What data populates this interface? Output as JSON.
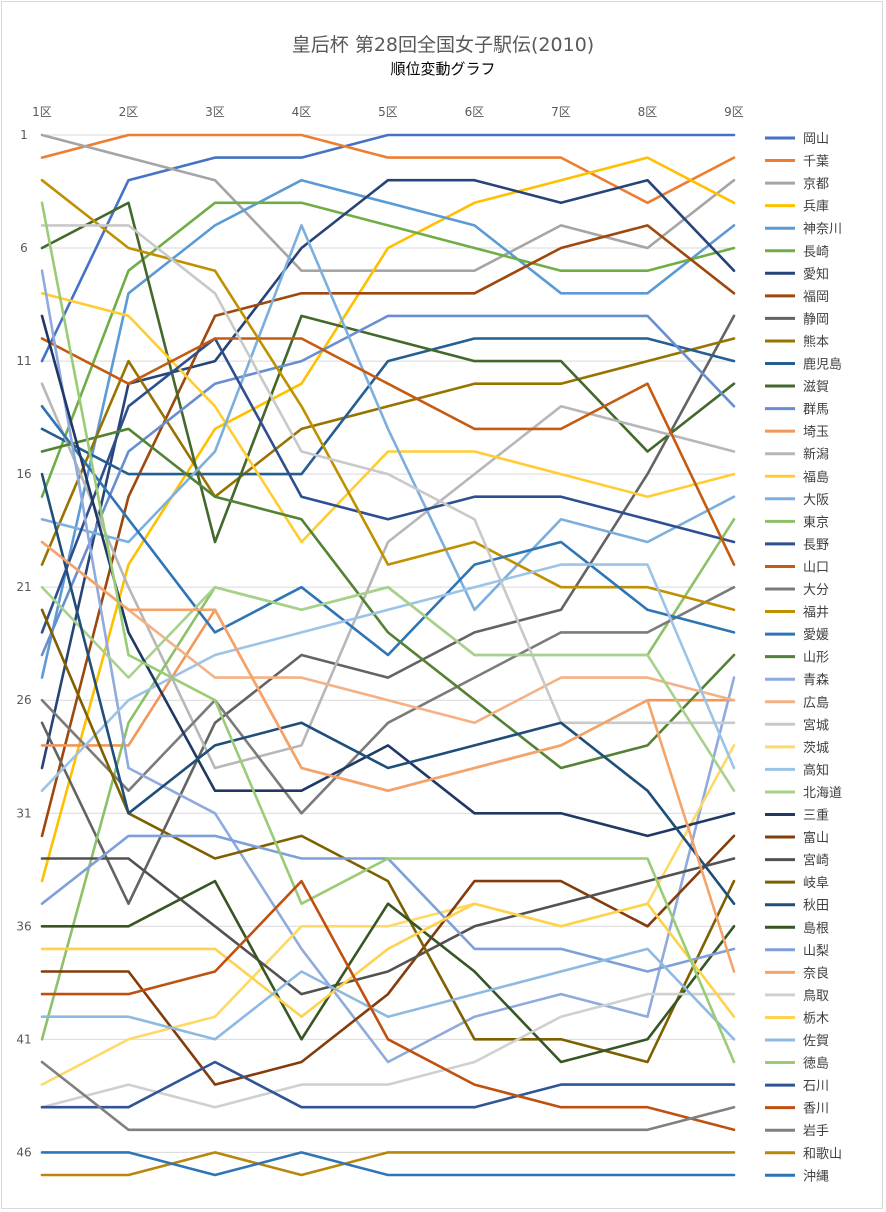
{
  "chart_data": {
    "type": "line",
    "title": "皇后杯 第28回全国女子駅伝(2010)",
    "subtitle": "順位変動グラフ",
    "categories": [
      "1区",
      "2区",
      "3区",
      "4区",
      "5区",
      "6区",
      "7区",
      "8区",
      "9区"
    ],
    "y_ticks": [
      1,
      6,
      11,
      16,
      21,
      26,
      31,
      36,
      41,
      46
    ],
    "ylim": [
      1,
      47
    ],
    "y_reversed": true,
    "grid": true,
    "legend_position": "right",
    "series": [
      {
        "name": "岡山",
        "color": "#4472C4",
        "values": [
          11,
          3,
          2,
          2,
          1,
          1,
          1,
          1,
          1
        ]
      },
      {
        "name": "千葉",
        "color": "#ED7D31",
        "values": [
          2,
          1,
          1,
          1,
          2,
          2,
          2,
          4,
          2
        ]
      },
      {
        "name": "京都",
        "color": "#A5A5A5",
        "values": [
          1,
          2,
          3,
          7,
          7,
          7,
          5,
          6,
          3
        ]
      },
      {
        "name": "兵庫",
        "color": "#FFC000",
        "values": [
          34,
          20,
          14,
          12,
          6,
          4,
          3,
          2,
          4
        ]
      },
      {
        "name": "神奈川",
        "color": "#5B9BD5",
        "values": [
          25,
          8,
          5,
          3,
          4,
          5,
          8,
          8,
          5
        ]
      },
      {
        "name": "長崎",
        "color": "#70AD47",
        "values": [
          17,
          7,
          4,
          4,
          5,
          6,
          7,
          7,
          6
        ]
      },
      {
        "name": "愛知",
        "color": "#264478",
        "values": [
          29,
          12,
          11,
          6,
          3,
          3,
          4,
          3,
          7
        ]
      },
      {
        "name": "福岡",
        "color": "#9E480E",
        "values": [
          32,
          17,
          9,
          8,
          8,
          8,
          6,
          5,
          8
        ]
      },
      {
        "name": "静岡",
        "color": "#636363",
        "values": [
          27,
          35,
          27,
          24,
          25,
          23,
          22,
          16,
          9
        ]
      },
      {
        "name": "熊本",
        "color": "#997300",
        "values": [
          20,
          11,
          17,
          14,
          13,
          12,
          12,
          11,
          10
        ]
      },
      {
        "name": "鹿児島",
        "color": "#255E91",
        "values": [
          14,
          16,
          16,
          16,
          11,
          10,
          10,
          10,
          11
        ]
      },
      {
        "name": "滋賀",
        "color": "#43682B",
        "values": [
          6,
          4,
          19,
          9,
          10,
          11,
          11,
          15,
          12
        ]
      },
      {
        "name": "群馬",
        "color": "#698ED0",
        "values": [
          24,
          15,
          12,
          11,
          9,
          9,
          9,
          9,
          13
        ]
      },
      {
        "name": "埼玉",
        "color": "#F1975A",
        "values": [
          28,
          28,
          22,
          29,
          30,
          29,
          28,
          26,
          26
        ]
      },
      {
        "name": "新潟",
        "color": "#B7B7B7",
        "values": [
          12,
          21,
          29,
          28,
          19,
          16,
          13,
          14,
          15
        ]
      },
      {
        "name": "福島",
        "color": "#FFCD33",
        "values": [
          8,
          9,
          13,
          19,
          15,
          15,
          16,
          17,
          16
        ]
      },
      {
        "name": "大阪",
        "color": "#7CAFDD",
        "values": [
          18,
          19,
          15,
          5,
          14,
          22,
          18,
          19,
          17
        ]
      },
      {
        "name": "東京",
        "color": "#8CC168",
        "values": [
          41,
          27,
          21,
          22,
          21,
          24,
          24,
          24,
          18
        ]
      },
      {
        "name": "長野",
        "color": "#2E4F8F",
        "values": [
          23,
          13,
          10,
          17,
          18,
          17,
          17,
          18,
          19
        ]
      },
      {
        "name": "山口",
        "color": "#C55A11",
        "values": [
          10,
          12,
          10,
          10,
          12,
          14,
          14,
          12,
          20
        ]
      },
      {
        "name": "大分",
        "color": "#7B7B7B",
        "values": [
          26,
          30,
          26,
          31,
          27,
          25,
          23,
          23,
          21
        ]
      },
      {
        "name": "福井",
        "color": "#BF9000",
        "values": [
          3,
          6,
          7,
          13,
          20,
          19,
          21,
          21,
          22
        ]
      },
      {
        "name": "愛媛",
        "color": "#2E75B6",
        "values": [
          13,
          18,
          23,
          21,
          24,
          20,
          19,
          22,
          23
        ]
      },
      {
        "name": "山形",
        "color": "#548235",
        "values": [
          15,
          14,
          17,
          18,
          23,
          26,
          29,
          28,
          24
        ]
      },
      {
        "name": "青森",
        "color": "#8FAADC",
        "values": [
          7,
          29,
          31,
          37,
          42,
          40,
          39,
          40,
          25
        ]
      },
      {
        "name": "広島",
        "color": "#F4B183",
        "values": [
          19,
          22,
          25,
          25,
          26,
          27,
          25,
          25,
          26
        ]
      },
      {
        "name": "宮城",
        "color": "#C9C9C9",
        "values": [
          5,
          5,
          8,
          15,
          16,
          18,
          27,
          27,
          27
        ]
      },
      {
        "name": "茨城",
        "color": "#FFD966",
        "values": [
          43,
          41,
          40,
          36,
          36,
          35,
          36,
          35,
          28
        ]
      },
      {
        "name": "高知",
        "color": "#9DC3E6",
        "values": [
          30,
          26,
          24,
          23,
          22,
          21,
          20,
          20,
          29
        ]
      },
      {
        "name": "北海道",
        "color": "#A9D18E",
        "values": [
          21,
          25,
          21,
          22,
          21,
          24,
          24,
          24,
          30
        ]
      },
      {
        "name": "三重",
        "color": "#203864",
        "values": [
          9,
          23,
          30,
          30,
          28,
          31,
          31,
          32,
          31
        ]
      },
      {
        "name": "富山",
        "color": "#843C0C",
        "values": [
          38,
          38,
          43,
          42,
          39,
          34,
          34,
          36,
          32
        ]
      },
      {
        "name": "宮崎",
        "color": "#525252",
        "values": [
          33,
          33,
          36,
          39,
          38,
          36,
          35,
          34,
          33
        ]
      },
      {
        "name": "岐阜",
        "color": "#7F6000",
        "values": [
          22,
          31,
          33,
          32,
          34,
          41,
          41,
          42,
          34
        ]
      },
      {
        "name": "秋田",
        "color": "#1F4E79",
        "values": [
          16,
          31,
          28,
          27,
          29,
          28,
          27,
          30,
          35
        ]
      },
      {
        "name": "島根",
        "color": "#375623",
        "values": [
          36,
          36,
          34,
          41,
          35,
          38,
          42,
          41,
          36
        ]
      },
      {
        "name": "山梨",
        "color": "#7F9FD9",
        "values": [
          35,
          32,
          32,
          33,
          33,
          37,
          37,
          38,
          37
        ]
      },
      {
        "name": "奈良",
        "color": "#F4A46A",
        "values": [
          19,
          22,
          22,
          29,
          30,
          29,
          28,
          26,
          38
        ]
      },
      {
        "name": "鳥取",
        "color": "#D0D0D0",
        "values": [
          44,
          43,
          44,
          43,
          43,
          42,
          40,
          39,
          39
        ]
      },
      {
        "name": "栃木",
        "color": "#FFD24D",
        "values": [
          37,
          37,
          37,
          40,
          37,
          35,
          36,
          35,
          40
        ]
      },
      {
        "name": "佐賀",
        "color": "#8EB9E2",
        "values": [
          40,
          40,
          41,
          38,
          40,
          39,
          38,
          37,
          41
        ]
      },
      {
        "name": "徳島",
        "color": "#9ACB75",
        "values": [
          4,
          24,
          26,
          35,
          33,
          33,
          33,
          33,
          42
        ]
      },
      {
        "name": "石川",
        "color": "#2F5597",
        "values": [
          44,
          44,
          42,
          44,
          44,
          44,
          43,
          43,
          43
        ]
      },
      {
        "name": "香川",
        "color": "#BF5010",
        "values": [
          39,
          39,
          38,
          34,
          41,
          43,
          44,
          44,
          45
        ]
      },
      {
        "name": "岩手",
        "color": "#808080",
        "values": [
          42,
          45,
          45,
          45,
          45,
          45,
          45,
          45,
          44
        ]
      },
      {
        "name": "和歌山",
        "color": "#B8860B",
        "values": [
          47,
          47,
          46,
          47,
          46,
          46,
          46,
          46,
          46
        ]
      },
      {
        "name": "沖縄",
        "color": "#2E75B6",
        "values": [
          46,
          46,
          47,
          46,
          47,
          47,
          47,
          47,
          47
        ]
      }
    ]
  }
}
